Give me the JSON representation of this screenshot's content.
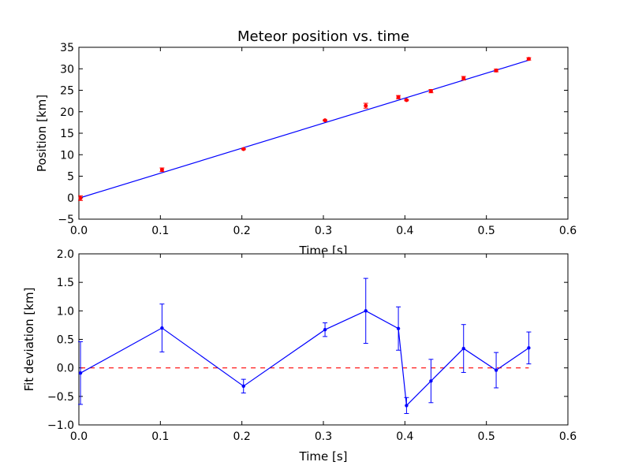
{
  "chart_data": [
    {
      "type": "scatter",
      "title": "Meteor position vs. time",
      "xlabel": "Time [s]",
      "ylabel": "Position [km]",
      "xlim": [
        0.0,
        0.6
      ],
      "ylim": [
        -5,
        35
      ],
      "xticks": [
        "0.0",
        "0.1",
        "0.2",
        "0.3",
        "0.4",
        "0.5",
        "0.6"
      ],
      "yticks": [
        "−5",
        "0",
        "5",
        "10",
        "15",
        "20",
        "25",
        "30",
        "35"
      ],
      "xtick_values": [
        0.0,
        0.1,
        0.2,
        0.3,
        0.4,
        0.5,
        0.6
      ],
      "ytick_values": [
        -5,
        0,
        5,
        10,
        15,
        20,
        25,
        30,
        35
      ],
      "grid": false,
      "points": {
        "x": [
          0.002,
          0.102,
          0.202,
          0.302,
          0.352,
          0.392,
          0.402,
          0.432,
          0.472,
          0.512,
          0.552
        ],
        "y": [
          -0.1,
          6.5,
          11.3,
          18.0,
          21.4,
          23.4,
          22.7,
          24.8,
          27.8,
          29.6,
          32.3
        ],
        "yerr": [
          0.55,
          0.42,
          0.12,
          0.12,
          0.57,
          0.38,
          0.14,
          0.38,
          0.42,
          0.31,
          0.28
        ],
        "color": "#ff0000"
      },
      "fit_line": {
        "x": [
          0.002,
          0.552
        ],
        "y": [
          0.0,
          32.0
        ],
        "color": "#0000ff"
      }
    },
    {
      "type": "line",
      "title": "",
      "xlabel": "Time [s]",
      "ylabel": "Fit deviation [km]",
      "xlim": [
        0.0,
        0.6
      ],
      "ylim": [
        -1.0,
        2.0
      ],
      "xticks": [
        "0.0",
        "0.1",
        "0.2",
        "0.3",
        "0.4",
        "0.5",
        "0.6"
      ],
      "yticks": [
        "−1.0",
        "−0.5",
        "0.0",
        "0.5",
        "1.0",
        "1.5",
        "2.0"
      ],
      "xtick_values": [
        0.0,
        0.1,
        0.2,
        0.3,
        0.4,
        0.5,
        0.6
      ],
      "ytick_values": [
        -1.0,
        -0.5,
        0.0,
        0.5,
        1.0,
        1.5,
        2.0
      ],
      "grid": false,
      "series": {
        "x": [
          0.002,
          0.102,
          0.202,
          0.302,
          0.352,
          0.392,
          0.402,
          0.432,
          0.472,
          0.512,
          0.552
        ],
        "y": [
          -0.09,
          0.7,
          -0.32,
          0.67,
          1.0,
          0.69,
          -0.66,
          -0.23,
          0.34,
          -0.04,
          0.35
        ],
        "yerr": [
          0.55,
          0.42,
          0.12,
          0.12,
          0.57,
          0.38,
          0.14,
          0.38,
          0.42,
          0.31,
          0.28
        ],
        "color": "#0000ff"
      },
      "reference_line": {
        "y": 0.0,
        "x": [
          0.002,
          0.552
        ],
        "color": "#ff0000",
        "style": "dashed"
      }
    }
  ]
}
